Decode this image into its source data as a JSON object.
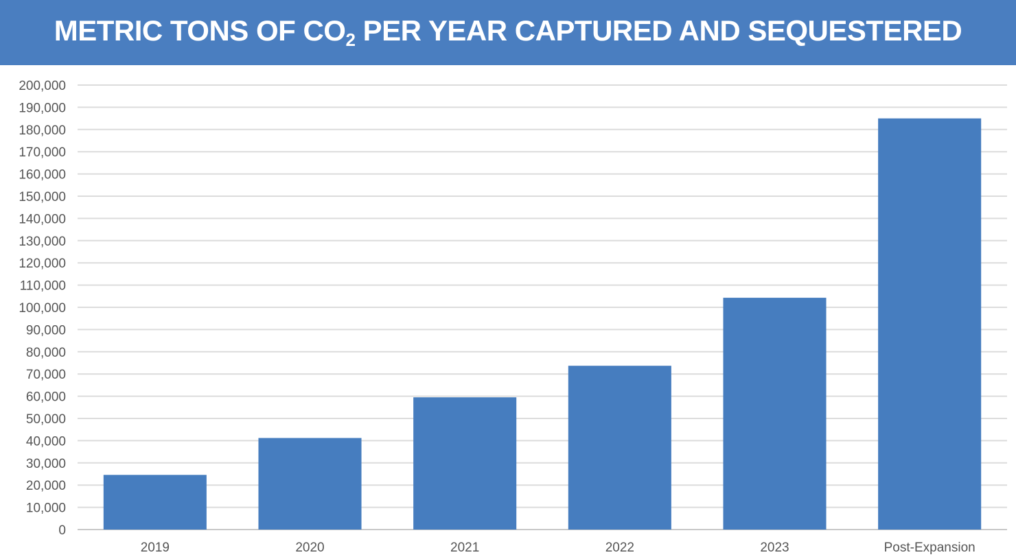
{
  "chart_data": {
    "type": "bar",
    "title_parts": {
      "before": "METRIC TONS OF CO",
      "subscript": "2",
      "after": " PER YEAR CAPTURED AND SEQUESTERED"
    },
    "categories": [
      "2019",
      "2020",
      "2021",
      "2022",
      "2023",
      "Post-Expansion"
    ],
    "values": [
      24600,
      41200,
      59500,
      73700,
      104300,
      185000
    ],
    "xlabel": "",
    "ylabel": "",
    "ylim": [
      0,
      200000
    ],
    "ytick_step": 10000,
    "grid": true,
    "legend": "none",
    "bar_color": "#467dbf",
    "header_color": "#4a7ec0"
  }
}
